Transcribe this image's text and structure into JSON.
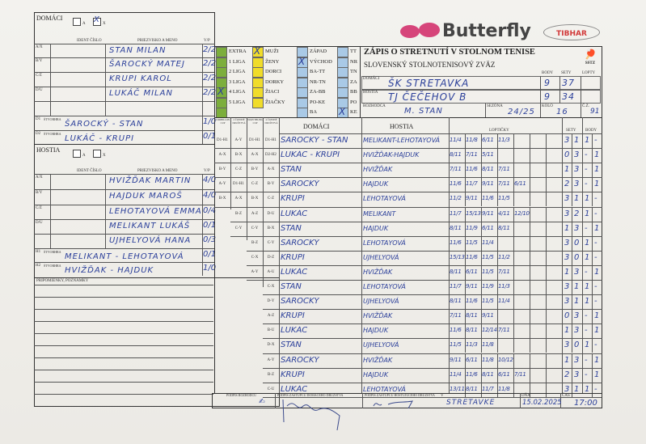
{
  "logos": {
    "butterfly": "Butterfly",
    "tibhar": "TIBHAR",
    "sstz": "SSTZ",
    "butterfly_color": "#d6457a"
  },
  "home": {
    "label": "DOMÁCI",
    "opt_a": "A",
    "opt_x": "X",
    "selected": "X",
    "col_ident": "IDENT ČÍSLO",
    "col_name": "PRIEZVISKO A MENO",
    "col_vp": "V/P",
    "players": [
      {
        "code": "A/X",
        "name": "STAN MILAN",
        "vp": "2/2"
      },
      {
        "code": "B/Y",
        "name": "ŠAROCKÝ MATEJ",
        "vp": "2/2"
      },
      {
        "code": "C/Z",
        "name": "KRUPI KAROL",
        "vp": "2/2"
      },
      {
        "code": "D/U",
        "name": "LUKÁČ MILAN",
        "vp": "2/2"
      },
      {
        "code": "",
        "name": "",
        "vp": ""
      }
    ],
    "doubles": [
      {
        "code": "D1",
        "label": "ŠTVORHRA",
        "name": "ŠAROCKÝ - STAN",
        "vp": "1/0"
      },
      {
        "code": "D2",
        "label": "ŠTVORHRA",
        "name": "LUKÁČ - KRUPI",
        "vp": "0/1"
      }
    ]
  },
  "away": {
    "label": "HOSTIA",
    "opt_a": "A",
    "opt_x": "X",
    "col_ident": "IDENT ČÍSLO",
    "col_name": "PRIEZVISKO A MENO",
    "col_vp": "V/P",
    "players": [
      {
        "code": "A/X",
        "name": "HVIŽĎAK MARTIN",
        "vp": "4/0"
      },
      {
        "code": "B/Y",
        "name": "HAJDUK MAROŠ",
        "vp": "4/0"
      },
      {
        "code": "C/Z",
        "name": "LEHOTAYOVÁ EMMA",
        "vp": "0/4"
      },
      {
        "code": "D/U",
        "name": "MELIKANT LUKÁŠ",
        "vp": "0/1"
      },
      {
        "code": "",
        "name": "UJHELYOVÁ HANA",
        "vp": "0/3"
      }
    ],
    "doubles": [
      {
        "code": "H1",
        "label": "ŠTVORHRA",
        "name": "MELIKANT - LEHOTAYOVÁ",
        "vp": "0/1"
      },
      {
        "code": "H2",
        "label": "ŠTVORHRA",
        "name": "HVIŽĎAK - HAJDUK",
        "vp": "1/0"
      }
    ]
  },
  "notes_label": "PRIPOMIENKY, POZNÁMKY",
  "categories": [
    {
      "color": "#7cae3c",
      "items": [
        "EXTRA",
        "1 LIGA",
        "2 LIGA",
        "3 LIGA",
        "4 LIGA",
        "5 LIGA",
        ""
      ],
      "checked": 4
    },
    {
      "color": "#f0dc2a",
      "items": [
        "MUŽI",
        "ŽENY",
        "DORCI",
        "DORKY",
        "ŽIACI",
        "ŽIAČKY"
      ],
      "checked": 0
    },
    {
      "color": "#a9c9e6",
      "items": [
        "ZÁPAD",
        "VÝCHOD",
        "BA-TT",
        "NR-TN",
        "ZA-BB",
        "PO-KE",
        "BA"
      ],
      "checked": 1
    },
    {
      "color": "#a9c9e6",
      "items": [
        "TT",
        "NR",
        "TN",
        "ZA",
        "BB",
        "PO",
        "KE"
      ],
      "checked": 6
    }
  ],
  "title": {
    "main": "ZÁPIS O STRETNUTÍ V STOLNOM TENISE",
    "sub": "SLOVENSKÝ STOLNOTENISOVÝ ZVÄZ",
    "col_body": "BODY",
    "col_sety": "SETY",
    "col_lopty": "LOPTY",
    "home_label": "DOMÁCI",
    "home_team": "ŠK STRETAVKA",
    "home_body": "9",
    "home_sety": "37",
    "away_label": "HOSTIA",
    "away_team": "TJ ČEČEHOV B",
    "away_body": "9",
    "away_sety": "34",
    "referee_label": "ROZHODCA",
    "referee": "M. STAN",
    "season_label": "SEZÓNA",
    "season": "24/25",
    "round_label": "KOLO",
    "round": "16",
    "cz_label": "Č.Z.",
    "cz": "91"
  },
  "matches": {
    "system_headers": [
      "CORBILLON CUP",
      "2 ČLENNÉ DRUŽSTVÁ",
      "SWAYTHLING CUP",
      "4 ČLENNÉ DRUŽSTVÁ"
    ],
    "col_home": "DOMÁCI",
    "col_away": "HOSTIA",
    "col_balls": "LOPTIČKY",
    "col_sets": "SETY",
    "col_points": "BODY",
    "rows": [
      {
        "sys": [
          "D1-H1",
          "A-Y",
          "D1-H1",
          "D1-H1"
        ],
        "home": "ŠAROCKÝ - STAN",
        "away": "MELIKANT-LEHOTAYOVÁ",
        "balls": [
          "11/4",
          "11/8",
          "6/11",
          "11/3"
        ],
        "sets": [
          "3",
          "1"
        ],
        "points": [
          "1",
          "-"
        ]
      },
      {
        "sys": [
          "A-X",
          "B-X",
          "A-X",
          "D2-H2"
        ],
        "home": "LUKÁČ - KRUPI",
        "away": "HVIŽĎAK-HAJDUK",
        "balls": [
          "8/11",
          "7/11",
          "5/11"
        ],
        "sets": [
          "0",
          "3"
        ],
        "points": [
          "-",
          "1"
        ]
      },
      {
        "sys": [
          "B-Y",
          "C-Z",
          "B-Y",
          "A-X"
        ],
        "home": "STAN",
        "away": "HVIŽĎAK",
        "balls": [
          "7/11",
          "11/6",
          "8/11",
          "7/11"
        ],
        "sets": [
          "1",
          "3"
        ],
        "points": [
          "-",
          "1"
        ]
      },
      {
        "sys": [
          "A-Y",
          "D1-H1",
          "C-Z",
          "B-Y"
        ],
        "home": "ŠAROCKÝ",
        "away": "HAJDUK",
        "balls": [
          "11/6",
          "11/7",
          "9/11",
          "7/11",
          "6/11"
        ],
        "sets": [
          "2",
          "3"
        ],
        "points": [
          "-",
          "1"
        ]
      },
      {
        "sys": [
          "B-X",
          "A-X",
          "B-X",
          "C-Z"
        ],
        "home": "KRUPI",
        "away": "LEHOTAYOVÁ",
        "balls": [
          "11/2",
          "9/11",
          "11/6",
          "11/5"
        ],
        "sets": [
          "3",
          "1"
        ],
        "points": [
          "1",
          "-"
        ]
      },
      {
        "sys": [
          "",
          "B-Z",
          "A-Z",
          "D-U"
        ],
        "home": "LUKÁČ",
        "away": "MELIKANT",
        "balls": [
          "11/7",
          "15/13",
          "9/11",
          "4/11",
          "12/10"
        ],
        "sets": [
          "3",
          "2"
        ],
        "points": [
          "1",
          "-"
        ]
      },
      {
        "sys": [
          "",
          "C-Y",
          "C-Y",
          "B-X"
        ],
        "home": "STAN",
        "away": "HAJDUK",
        "balls": [
          "8/11",
          "11/9",
          "6/11",
          "8/11"
        ],
        "sets": [
          "1",
          "3"
        ],
        "points": [
          "-",
          "1"
        ]
      },
      {
        "sys": [
          "",
          "",
          "B-Z",
          "C-Y"
        ],
        "home": "ŠAROCKÝ",
        "away": "LEHOTAYOVÁ",
        "balls": [
          "11/6",
          "11/5",
          "11/4"
        ],
        "sets": [
          "3",
          "0"
        ],
        "points": [
          "1",
          "-"
        ]
      },
      {
        "sys": [
          "",
          "",
          "C-X",
          "D-Z"
        ],
        "home": "KRUPI",
        "away": "UJHELYOVÁ",
        "balls": [
          "15/13",
          "11/6",
          "11/5",
          "11/2"
        ],
        "sets": [
          "3",
          "0"
        ],
        "points": [
          "1",
          "-"
        ]
      },
      {
        "sys": [
          "",
          "",
          "A-Y",
          "A-U"
        ],
        "home": "LUKÁČ",
        "away": "HVIŽĎAK",
        "balls": [
          "8/11",
          "6/11",
          "11/5",
          "7/11"
        ],
        "sets": [
          "1",
          "3"
        ],
        "points": [
          "-",
          "1"
        ]
      },
      {
        "sys": [
          "",
          "",
          "",
          "C-X"
        ],
        "home": "STAN",
        "away": "LEHOTAYOVÁ",
        "balls": [
          "11/7",
          "9/11",
          "11/9",
          "11/3"
        ],
        "sets": [
          "3",
          "1"
        ],
        "points": [
          "1",
          "-"
        ]
      },
      {
        "sys": [
          "",
          "",
          "",
          "D-Y"
        ],
        "home": "ŠAROCKÝ",
        "away": "UJHELYOVÁ",
        "balls": [
          "8/11",
          "11/6",
          "11/5",
          "11/4"
        ],
        "sets": [
          "3",
          "1"
        ],
        "points": [
          "1",
          "-"
        ]
      },
      {
        "sys": [
          "",
          "",
          "",
          "A-Z"
        ],
        "home": "KRUPI",
        "away": "HVIŽĎAK",
        "balls": [
          "7/11",
          "8/11",
          "9/11"
        ],
        "sets": [
          "0",
          "3"
        ],
        "points": [
          "-",
          "1"
        ]
      },
      {
        "sys": [
          "",
          "",
          "",
          "B-U"
        ],
        "home": "LUKÁČ",
        "away": "HAJDUK",
        "balls": [
          "11/6",
          "8/11",
          "12/14",
          "7/11"
        ],
        "sets": [
          "1",
          "3"
        ],
        "points": [
          "-",
          "1"
        ]
      },
      {
        "sys": [
          "",
          "",
          "",
          "D-X"
        ],
        "home": "STAN",
        "away": "UJHELYOVÁ",
        "balls": [
          "11/5",
          "11/3",
          "11/8"
        ],
        "sets": [
          "3",
          "0"
        ],
        "points": [
          "1",
          "-"
        ]
      },
      {
        "sys": [
          "",
          "",
          "",
          "A-Y"
        ],
        "home": "ŠAROCKÝ",
        "away": "HVIŽĎAK",
        "balls": [
          "9/11",
          "6/11",
          "11/8",
          "10/12"
        ],
        "sets": [
          "1",
          "3"
        ],
        "points": [
          "-",
          "1"
        ]
      },
      {
        "sys": [
          "",
          "",
          "",
          "B-Z"
        ],
        "home": "KRUPI",
        "away": "HAJDUK",
        "balls": [
          "11/4",
          "11/6",
          "8/11",
          "6/11",
          "7/11"
        ],
        "sets": [
          "2",
          "3"
        ],
        "points": [
          "-",
          "1"
        ]
      },
      {
        "sys": [
          "",
          "",
          "",
          "C-U"
        ],
        "home": "LUKÁČ",
        "away": "LEHOTAYOVÁ",
        "balls": [
          "13/11",
          "8/11",
          "11/7",
          "11/8"
        ],
        "sets": [
          "3",
          "1"
        ],
        "points": [
          "1",
          "-"
        ]
      }
    ]
  },
  "footer": {
    "referee_sig_label": "PODPIS ROZHODCU",
    "home_sig_label": "PODPIS ZÁSTUPCU DOMÁCEHO DRUŽSTVA",
    "away_sig_label": "PODPIS ZÁSTUPCU HOSTUJÚCEHO DRUŽSTVA",
    "place_label": "V",
    "place": "STRETAVKE",
    "date_label": "DŇA",
    "date": "15.02.2025",
    "time_label": "ČAS",
    "time": "17:00"
  }
}
